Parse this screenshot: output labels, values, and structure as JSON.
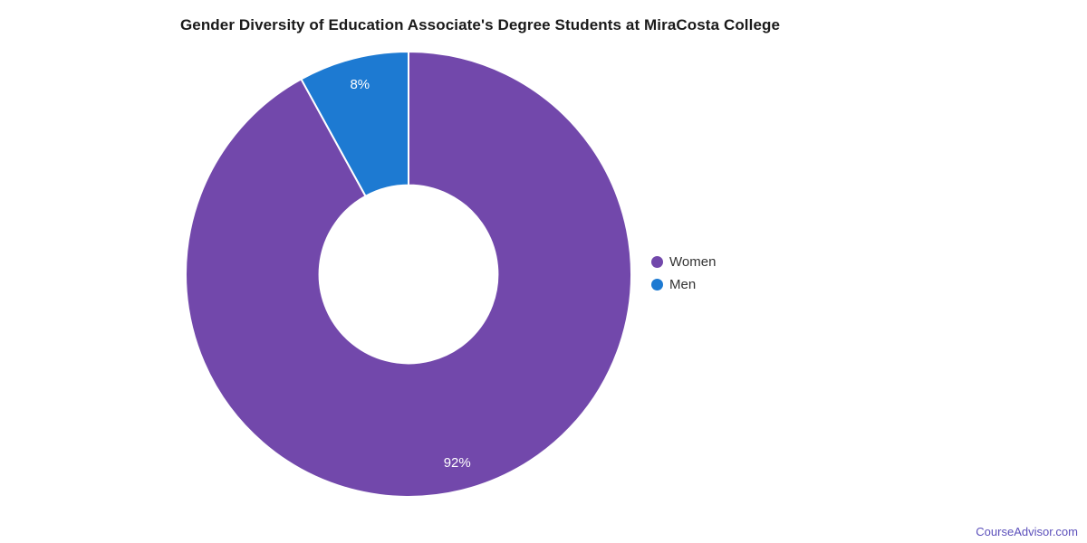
{
  "title": "Gender Diversity of Education Associate's Degree Students at MiraCosta College",
  "attribution": "CourseAdvisor.com",
  "chart_data": {
    "type": "pie",
    "subtype": "donut",
    "title": "Gender Diversity of Education Associate's Degree Students at MiraCosta College",
    "categories": [
      "Women",
      "Men"
    ],
    "values": [
      92,
      8
    ],
    "labels": [
      "92%",
      "8%"
    ],
    "colors": [
      "#7248ab",
      "#1d7ad2"
    ],
    "label_color": "#ffffff",
    "legend_position": "right",
    "start_angle_deg": 0,
    "direction": "clockwise",
    "inner_radius_ratio": 0.4
  }
}
